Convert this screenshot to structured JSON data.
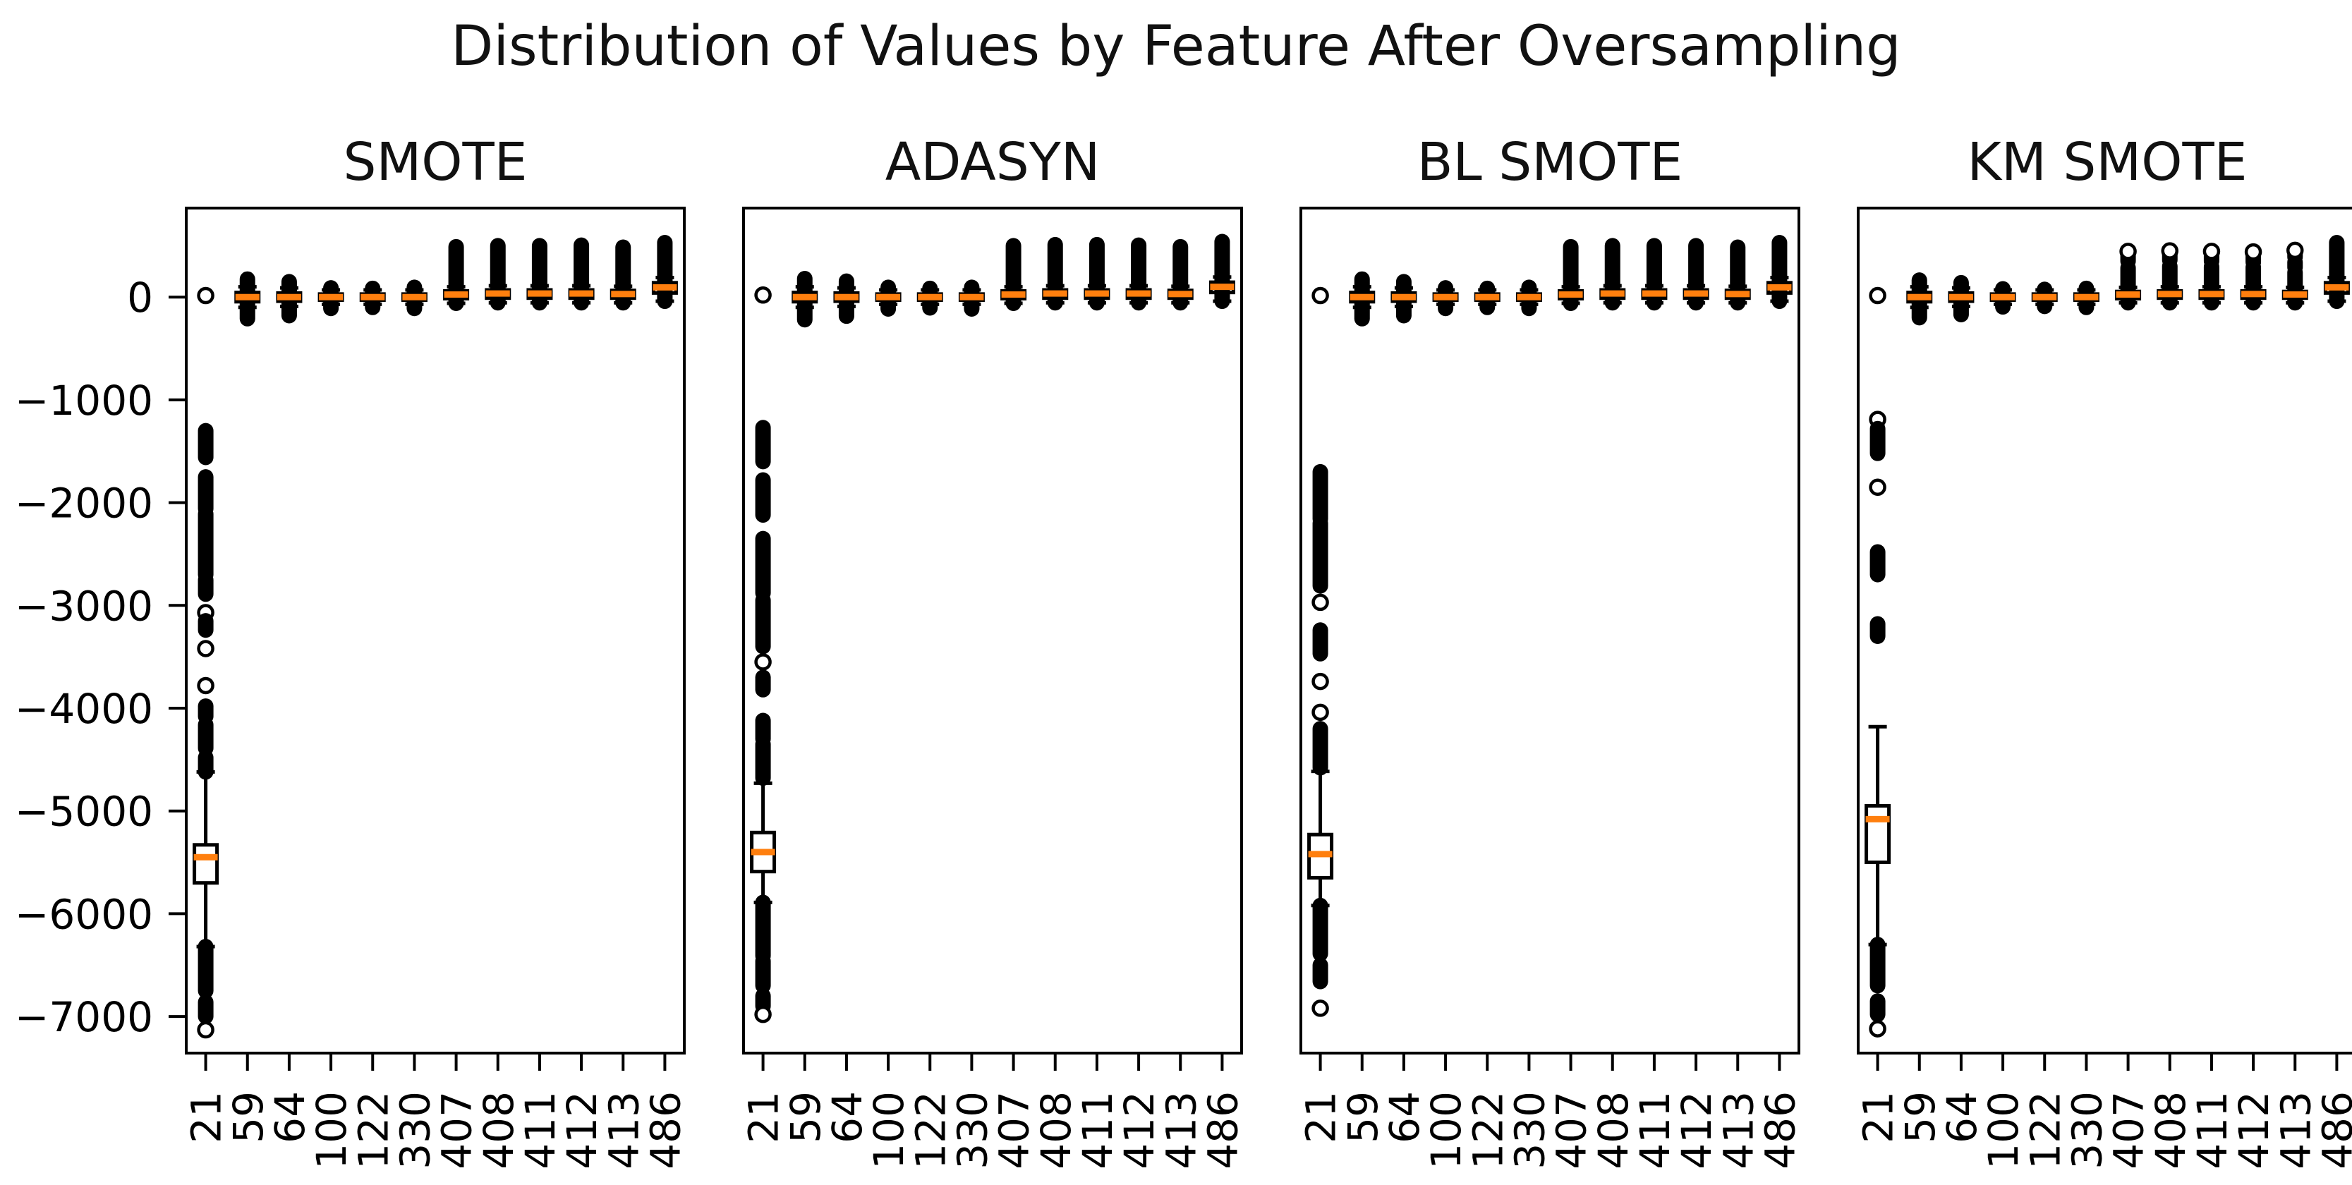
{
  "chart_data": {
    "type": "boxplot",
    "title": "Distribution of Values by Feature After Oversampling",
    "categories": [
      "21",
      "59",
      "64",
      "100",
      "122",
      "330",
      "407",
      "408",
      "411",
      "412",
      "413",
      "486"
    ],
    "xlabel": "",
    "ylabel": "",
    "yticks": [
      0,
      -1000,
      -2000,
      -3000,
      -4000,
      -5000,
      -6000,
      -7000
    ],
    "ylim": [
      -7370,
      880
    ],
    "grid": false,
    "legend": "none",
    "background": "#ffffff",
    "box_color": "#000000",
    "median_color": "#ff7f0e",
    "outlier_styles": {
      "d": "dense-cluster-column",
      "o": "open-circle"
    },
    "subplots": [
      {
        "title": "SMOTE",
        "boxes": [
          {
            "med": -5450,
            "q1": -5700,
            "q3": -5330,
            "wlo": -6320,
            "whi": -4620,
            "out": [
              [
                15,
                15,
                "o"
              ],
              [
                -1300,
                -1560,
                "d"
              ],
              [
                -1750,
                -2060,
                "d"
              ],
              [
                -2110,
                -2700,
                "d"
              ],
              [
                -2750,
                -2890,
                "d"
              ],
              [
                -3070,
                -3070,
                "o"
              ],
              [
                -3150,
                -3240,
                "d"
              ],
              [
                -3420,
                -3420,
                "o"
              ],
              [
                -3780,
                -3780,
                "o"
              ],
              [
                -3980,
                -4080,
                "d"
              ],
              [
                -4160,
                -4390,
                "d"
              ],
              [
                -4480,
                -4620,
                "d"
              ],
              [
                -6320,
                -6750,
                "d"
              ],
              [
                -6860,
                -7000,
                "d"
              ],
              [
                -7130,
                -7130,
                "o"
              ]
            ]
          },
          {
            "med": 0,
            "q1": -45,
            "q3": 45,
            "wlo": -100,
            "whi": 100,
            "out": [
              [
                -210,
                175,
                "d"
              ]
            ]
          },
          {
            "med": 0,
            "q1": -40,
            "q3": 40,
            "wlo": -90,
            "whi": 90,
            "out": [
              [
                -180,
                150,
                "d"
              ]
            ]
          },
          {
            "med": 0,
            "q1": -30,
            "q3": 30,
            "wlo": -70,
            "whi": 70,
            "out": [
              [
                -110,
                90,
                "d"
              ]
            ]
          },
          {
            "med": 0,
            "q1": -30,
            "q3": 30,
            "wlo": -70,
            "whi": 70,
            "out": [
              [
                -100,
                85,
                "d"
              ]
            ]
          },
          {
            "med": 0,
            "q1": -30,
            "q3": 30,
            "wlo": -70,
            "whi": 70,
            "out": [
              [
                -110,
                95,
                "d"
              ]
            ]
          },
          {
            "med": 25,
            "q1": -15,
            "q3": 60,
            "wlo": -60,
            "whi": 100,
            "out": [
              [
                -60,
                490,
                "d"
              ]
            ]
          },
          {
            "med": 35,
            "q1": -10,
            "q3": 70,
            "wlo": -55,
            "whi": 110,
            "out": [
              [
                -55,
                500,
                "d"
              ]
            ]
          },
          {
            "med": 35,
            "q1": -10,
            "q3": 70,
            "wlo": -55,
            "whi": 110,
            "out": [
              [
                -55,
                500,
                "d"
              ]
            ]
          },
          {
            "med": 35,
            "q1": -10,
            "q3": 70,
            "wlo": -55,
            "whi": 110,
            "out": [
              [
                -55,
                505,
                "d"
              ]
            ]
          },
          {
            "med": 30,
            "q1": -10,
            "q3": 65,
            "wlo": -55,
            "whi": 105,
            "out": [
              [
                -55,
                485,
                "d"
              ]
            ]
          },
          {
            "med": 95,
            "q1": 40,
            "q3": 140,
            "wlo": -40,
            "whi": 190,
            "out": [
              [
                -40,
                530,
                "d"
              ]
            ]
          }
        ]
      },
      {
        "title": "ADASYN",
        "boxes": [
          {
            "med": -5400,
            "q1": -5590,
            "q3": -5210,
            "wlo": -5890,
            "whi": -4730,
            "out": [
              [
                20,
                20,
                "o"
              ],
              [
                -1270,
                -1600,
                "d"
              ],
              [
                -1780,
                -2120,
                "d"
              ],
              [
                -2350,
                -2880,
                "d"
              ],
              [
                -2950,
                -3400,
                "d"
              ],
              [
                -3550,
                -3550,
                "o"
              ],
              [
                -3700,
                -3820,
                "d"
              ],
              [
                -4120,
                -4300,
                "d"
              ],
              [
                -4350,
                -4680,
                "d"
              ],
              [
                -5890,
                -6410,
                "d"
              ],
              [
                -6460,
                -6700,
                "d"
              ],
              [
                -6800,
                -6900,
                "d"
              ],
              [
                -6980,
                -6980,
                "o"
              ]
            ]
          },
          {
            "med": 0,
            "q1": -45,
            "q3": 45,
            "wlo": -100,
            "whi": 100,
            "out": [
              [
                -220,
                180,
                "d"
              ]
            ]
          },
          {
            "med": 0,
            "q1": -40,
            "q3": 40,
            "wlo": -90,
            "whi": 90,
            "out": [
              [
                -185,
                155,
                "d"
              ]
            ]
          },
          {
            "med": 0,
            "q1": -30,
            "q3": 30,
            "wlo": -70,
            "whi": 70,
            "out": [
              [
                -115,
                95,
                "d"
              ]
            ]
          },
          {
            "med": 0,
            "q1": -30,
            "q3": 30,
            "wlo": -70,
            "whi": 70,
            "out": [
              [
                -105,
                85,
                "d"
              ]
            ]
          },
          {
            "med": 0,
            "q1": -30,
            "q3": 30,
            "wlo": -70,
            "whi": 70,
            "out": [
              [
                -115,
                95,
                "d"
              ]
            ]
          },
          {
            "med": 25,
            "q1": -15,
            "q3": 60,
            "wlo": -60,
            "whi": 100,
            "out": [
              [
                -60,
                500,
                "d"
              ]
            ]
          },
          {
            "med": 35,
            "q1": -10,
            "q3": 70,
            "wlo": -55,
            "whi": 110,
            "out": [
              [
                -55,
                510,
                "d"
              ]
            ]
          },
          {
            "med": 35,
            "q1": -10,
            "q3": 70,
            "wlo": -55,
            "whi": 110,
            "out": [
              [
                -55,
                510,
                "d"
              ]
            ]
          },
          {
            "med": 35,
            "q1": -10,
            "q3": 70,
            "wlo": -55,
            "whi": 110,
            "out": [
              [
                -55,
                505,
                "d"
              ]
            ]
          },
          {
            "med": 30,
            "q1": -10,
            "q3": 65,
            "wlo": -55,
            "whi": 105,
            "out": [
              [
                -55,
                490,
                "d"
              ]
            ]
          },
          {
            "med": 100,
            "q1": 45,
            "q3": 145,
            "wlo": -40,
            "whi": 195,
            "out": [
              [
                -40,
                540,
                "d"
              ]
            ]
          }
        ]
      },
      {
        "title": "BL SMOTE",
        "boxes": [
          {
            "med": -5420,
            "q1": -5650,
            "q3": -5230,
            "wlo": -5920,
            "whi": -4615,
            "out": [
              [
                15,
                15,
                "o"
              ],
              [
                -1700,
                -2160,
                "d"
              ],
              [
                -2200,
                -2810,
                "d"
              ],
              [
                -2970,
                -2970,
                "o"
              ],
              [
                -3240,
                -3470,
                "d"
              ],
              [
                -3740,
                -3740,
                "o"
              ],
              [
                -4040,
                -4040,
                "o"
              ],
              [
                -4200,
                -4580,
                "d"
              ],
              [
                -5920,
                -6390,
                "d"
              ],
              [
                -6500,
                -6660,
                "d"
              ],
              [
                -6920,
                -6920,
                "o"
              ]
            ]
          },
          {
            "med": 0,
            "q1": -45,
            "q3": 45,
            "wlo": -100,
            "whi": 100,
            "out": [
              [
                -210,
                175,
                "d"
              ]
            ]
          },
          {
            "med": 0,
            "q1": -40,
            "q3": 40,
            "wlo": -90,
            "whi": 90,
            "out": [
              [
                -180,
                150,
                "d"
              ]
            ]
          },
          {
            "med": 0,
            "q1": -30,
            "q3": 30,
            "wlo": -70,
            "whi": 70,
            "out": [
              [
                -110,
                90,
                "d"
              ]
            ]
          },
          {
            "med": 0,
            "q1": -30,
            "q3": 30,
            "wlo": -70,
            "whi": 70,
            "out": [
              [
                -100,
                85,
                "d"
              ]
            ]
          },
          {
            "med": 0,
            "q1": -30,
            "q3": 30,
            "wlo": -70,
            "whi": 70,
            "out": [
              [
                -110,
                95,
                "d"
              ]
            ]
          },
          {
            "med": 25,
            "q1": -15,
            "q3": 60,
            "wlo": -60,
            "whi": 100,
            "out": [
              [
                -60,
                490,
                "d"
              ]
            ]
          },
          {
            "med": 35,
            "q1": -10,
            "q3": 70,
            "wlo": -55,
            "whi": 110,
            "out": [
              [
                -55,
                500,
                "d"
              ]
            ]
          },
          {
            "med": 35,
            "q1": -10,
            "q3": 70,
            "wlo": -55,
            "whi": 110,
            "out": [
              [
                -55,
                500,
                "d"
              ]
            ]
          },
          {
            "med": 35,
            "q1": -10,
            "q3": 70,
            "wlo": -55,
            "whi": 110,
            "out": [
              [
                -55,
                500,
                "d"
              ]
            ]
          },
          {
            "med": 30,
            "q1": -10,
            "q3": 65,
            "wlo": -55,
            "whi": 105,
            "out": [
              [
                -55,
                485,
                "d"
              ]
            ]
          },
          {
            "med": 95,
            "q1": 40,
            "q3": 140,
            "wlo": -40,
            "whi": 190,
            "out": [
              [
                -40,
                530,
                "d"
              ]
            ]
          }
        ]
      },
      {
        "title": "KM SMOTE",
        "boxes": [
          {
            "med": -5080,
            "q1": -5500,
            "q3": -4950,
            "wlo": -6300,
            "whi": -4180,
            "out": [
              [
                15,
                15,
                "o"
              ],
              [
                -1190,
                -1190,
                "o"
              ],
              [
                -1280,
                -1520,
                "d"
              ],
              [
                -1850,
                -1850,
                "o"
              ],
              [
                -2480,
                -2700,
                "d"
              ],
              [
                -3180,
                -3300,
                "d"
              ],
              [
                -6300,
                -6700,
                "d"
              ],
              [
                -6850,
                -6980,
                "d"
              ],
              [
                -7120,
                -7120,
                "o"
              ]
            ]
          },
          {
            "med": 0,
            "q1": -45,
            "q3": 45,
            "wlo": -100,
            "whi": 100,
            "out": [
              [
                -200,
                165,
                "d"
              ]
            ]
          },
          {
            "med": 0,
            "q1": -40,
            "q3": 40,
            "wlo": -90,
            "whi": 90,
            "out": [
              [
                -170,
                140,
                "d"
              ]
            ]
          },
          {
            "med": 0,
            "q1": -30,
            "q3": 30,
            "wlo": -70,
            "whi": 70,
            "out": [
              [
                -95,
                80,
                "d"
              ]
            ]
          },
          {
            "med": 0,
            "q1": -30,
            "q3": 30,
            "wlo": -70,
            "whi": 70,
            "out": [
              [
                -90,
                75,
                "d"
              ]
            ]
          },
          {
            "med": 0,
            "q1": -30,
            "q3": 30,
            "wlo": -70,
            "whi": 70,
            "out": [
              [
                -100,
                85,
                "d"
              ]
            ]
          },
          {
            "med": 25,
            "q1": -15,
            "q3": 55,
            "wlo": -55,
            "whi": 95,
            "out": [
              [
                -55,
                285,
                "d"
              ],
              [
                350,
                405,
                "d"
              ],
              [
                445,
                445,
                "o"
              ]
            ]
          },
          {
            "med": 30,
            "q1": -10,
            "q3": 60,
            "wlo": -55,
            "whi": 100,
            "out": [
              [
                -55,
                300,
                "d"
              ],
              [
                360,
                410,
                "d"
              ],
              [
                450,
                450,
                "o"
              ]
            ]
          },
          {
            "med": 30,
            "q1": -10,
            "q3": 60,
            "wlo": -55,
            "whi": 100,
            "out": [
              [
                -55,
                295,
                "d"
              ],
              [
                350,
                400,
                "d"
              ],
              [
                445,
                445,
                "o"
              ]
            ]
          },
          {
            "med": 30,
            "q1": -10,
            "q3": 60,
            "wlo": -55,
            "whi": 100,
            "out": [
              [
                -55,
                290,
                "d"
              ],
              [
                340,
                395,
                "d"
              ],
              [
                440,
                440,
                "o"
              ]
            ]
          },
          {
            "med": 25,
            "q1": -10,
            "q3": 55,
            "wlo": -55,
            "whi": 95,
            "out": [
              [
                -55,
                240,
                "d"
              ],
              [
                290,
                340,
                "d"
              ],
              [
                390,
                420,
                "d"
              ],
              [
                455,
                455,
                "o"
              ]
            ]
          },
          {
            "med": 95,
            "q1": 40,
            "q3": 140,
            "wlo": -40,
            "whi": 190,
            "out": [
              [
                -40,
                530,
                "d"
              ]
            ]
          }
        ]
      }
    ]
  }
}
